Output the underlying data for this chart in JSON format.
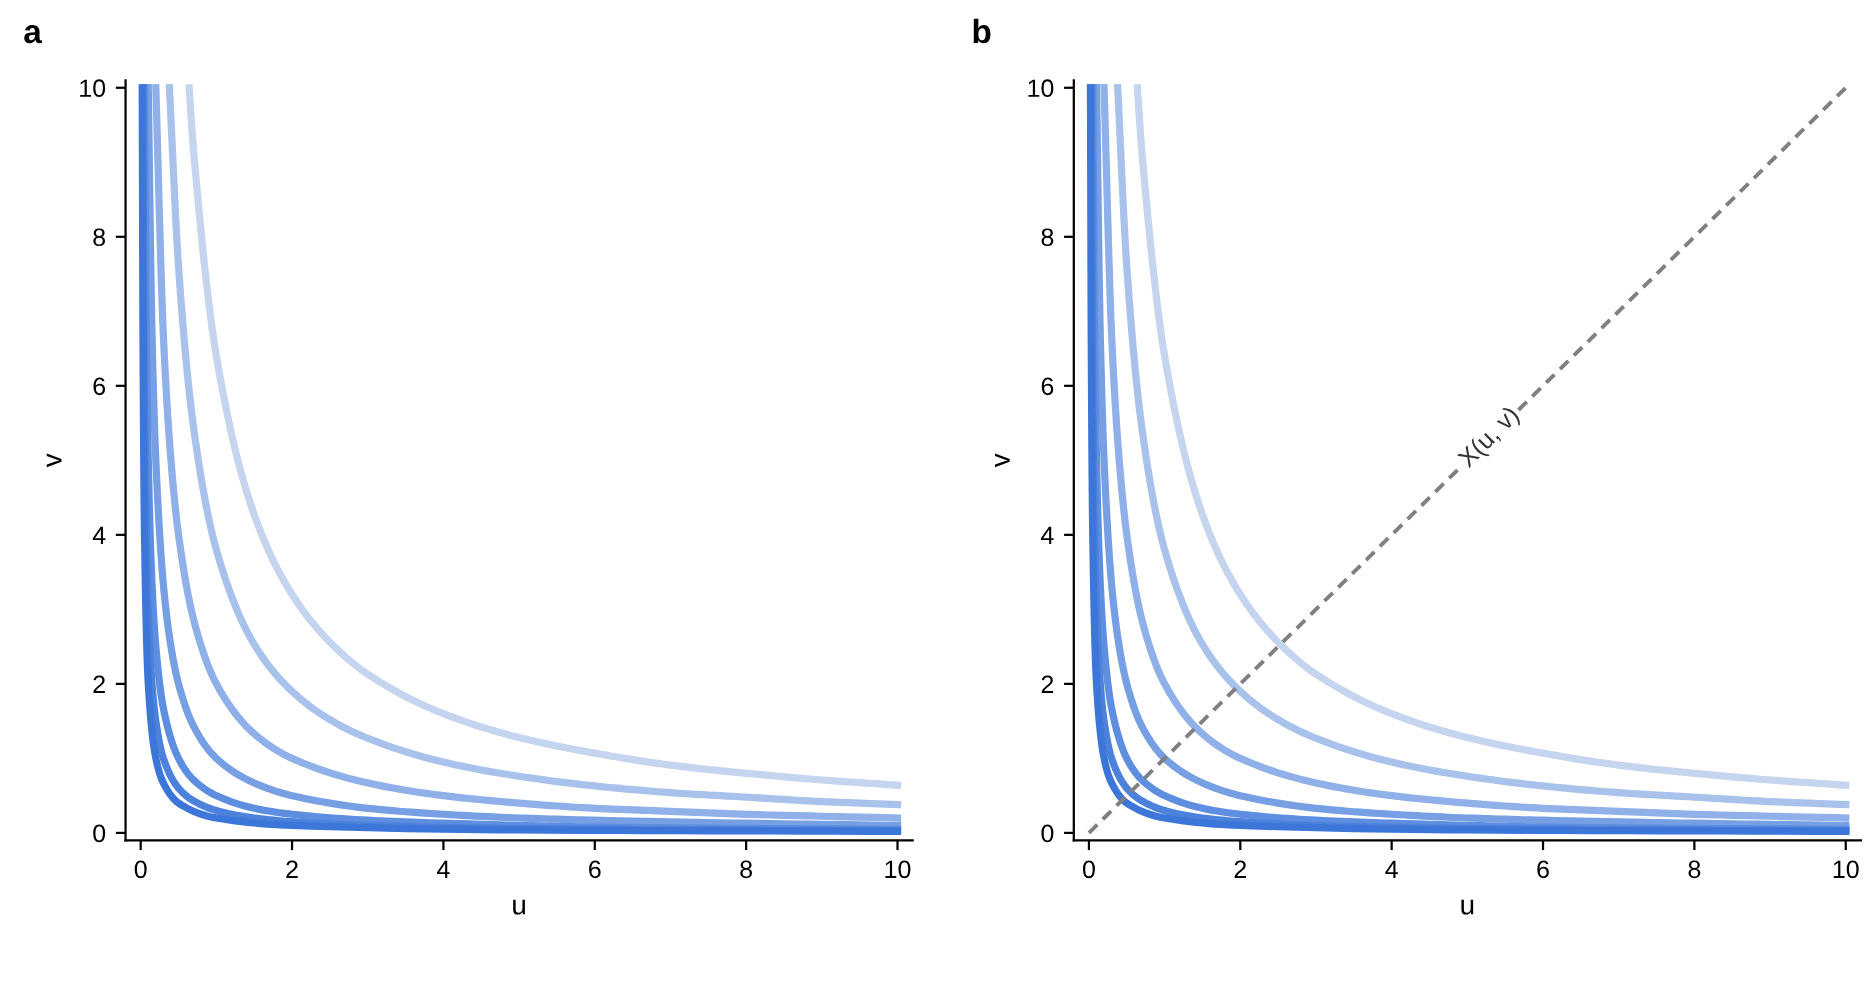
{
  "chart_data": [
    {
      "type": "line",
      "title": "a",
      "xlabel": "u",
      "ylabel": "v",
      "xlim": [
        -0.2,
        10.2
      ],
      "ylim": [
        -0.1,
        10.1
      ],
      "xticks": [
        0,
        2,
        4,
        6,
        8,
        10
      ],
      "yticks": [
        0,
        2,
        4,
        6,
        8,
        10
      ],
      "grid": false,
      "legend": false,
      "line_style": "solid",
      "series": [
        {
          "color": "#c5d5f0",
          "x": [
            0.64,
            0.7,
            1,
            1.5,
            2,
            2.5,
            3,
            4,
            5,
            6,
            7,
            8,
            9,
            10
          ],
          "values": [
            10,
            9.14,
            6.4,
            4.27,
            3.2,
            2.56,
            2.13,
            1.6,
            1.28,
            1.07,
            0.91,
            0.8,
            0.71,
            0.64
          ]
        },
        {
          "color": "#a9c2ec",
          "x": [
            0.38,
            0.5,
            0.7,
            1,
            1.5,
            2,
            2.5,
            3,
            4,
            5,
            6,
            7,
            8,
            9,
            10
          ],
          "values": [
            10,
            7.6,
            5.43,
            3.8,
            2.53,
            1.9,
            1.52,
            1.27,
            0.95,
            0.76,
            0.63,
            0.54,
            0.48,
            0.42,
            0.38
          ]
        },
        {
          "color": "#8fb0e8",
          "x": [
            0.2,
            0.3,
            0.4,
            0.5,
            0.7,
            1,
            1.5,
            2,
            3,
            4,
            5,
            6,
            7,
            8,
            10
          ],
          "values": [
            10,
            6.67,
            5,
            4,
            2.86,
            2,
            1.33,
            1,
            0.67,
            0.5,
            0.4,
            0.33,
            0.29,
            0.25,
            0.2
          ]
        },
        {
          "color": "#769fe4",
          "x": [
            0.1,
            0.15,
            0.2,
            0.3,
            0.4,
            0.5,
            0.7,
            1,
            1.5,
            2,
            3,
            4,
            5,
            6,
            8,
            10
          ],
          "values": [
            10,
            6.67,
            5,
            3.33,
            2.5,
            2,
            1.43,
            1,
            0.67,
            0.5,
            0.33,
            0.25,
            0.2,
            0.17,
            0.13,
            0.1
          ]
        },
        {
          "color": "#5e8ee0",
          "x": [
            0.05,
            0.07,
            0.1,
            0.15,
            0.2,
            0.3,
            0.5,
            0.7,
            1,
            1.5,
            2,
            3,
            4,
            6,
            8,
            10
          ],
          "values": [
            10,
            7.14,
            5,
            3.33,
            2.5,
            1.67,
            1,
            0.71,
            0.5,
            0.33,
            0.25,
            0.17,
            0.13,
            0.08,
            0.06,
            0.05
          ]
        },
        {
          "color": "#4c82dc",
          "x": [
            0.03,
            0.05,
            0.07,
            0.1,
            0.15,
            0.2,
            0.3,
            0.5,
            0.7,
            1,
            1.5,
            2,
            3,
            5,
            10
          ],
          "values": [
            10,
            6,
            4.29,
            3,
            2,
            1.5,
            1,
            0.6,
            0.43,
            0.3,
            0.2,
            0.15,
            0.1,
            0.06,
            0.03
          ]
        },
        {
          "color": "#3b76d8",
          "x": [
            0.02,
            0.03,
            0.05,
            0.1,
            0.2,
            0.3,
            0.5,
            1,
            2,
            5,
            10
          ],
          "values": [
            10,
            6.67,
            4,
            2,
            1,
            0.67,
            0.4,
            0.2,
            0.1,
            0.04,
            0.02
          ]
        }
      ]
    },
    {
      "type": "line",
      "title": "b",
      "xlabel": "u",
      "ylabel": "v",
      "xlim": [
        -0.2,
        10.2
      ],
      "ylim": [
        -0.1,
        10.1
      ],
      "xticks": [
        0,
        2,
        4,
        6,
        8,
        10
      ],
      "yticks": [
        0,
        2,
        4,
        6,
        8,
        10
      ],
      "grid": false,
      "legend": false,
      "annotations": [
        {
          "text": "X(u, v)",
          "x": 5.3,
          "y": 5.3
        }
      ],
      "series": [
        {
          "color": "#c5d5f0",
          "x": [
            0.64,
            0.7,
            1,
            1.5,
            2,
            2.5,
            3,
            4,
            5,
            6,
            7,
            8,
            9,
            10
          ],
          "values": [
            10,
            9.14,
            6.4,
            4.27,
            3.2,
            2.56,
            2.13,
            1.6,
            1.28,
            1.07,
            0.91,
            0.8,
            0.71,
            0.64
          ]
        },
        {
          "color": "#a9c2ec",
          "x": [
            0.38,
            0.5,
            0.7,
            1,
            1.5,
            2,
            2.5,
            3,
            4,
            5,
            6,
            7,
            8,
            9,
            10
          ],
          "values": [
            10,
            7.6,
            5.43,
            3.8,
            2.53,
            1.9,
            1.52,
            1.27,
            0.95,
            0.76,
            0.63,
            0.54,
            0.48,
            0.42,
            0.38
          ]
        },
        {
          "color": "#8fb0e8",
          "x": [
            0.2,
            0.3,
            0.4,
            0.5,
            0.7,
            1,
            1.5,
            2,
            3,
            4,
            5,
            6,
            7,
            8,
            10
          ],
          "values": [
            10,
            6.67,
            5,
            4,
            2.86,
            2,
            1.33,
            1,
            0.67,
            0.5,
            0.4,
            0.33,
            0.29,
            0.25,
            0.2
          ]
        },
        {
          "color": "#769fe4",
          "x": [
            0.1,
            0.15,
            0.2,
            0.3,
            0.4,
            0.5,
            0.7,
            1,
            1.5,
            2,
            3,
            4,
            5,
            6,
            8,
            10
          ],
          "values": [
            10,
            6.67,
            5,
            3.33,
            2.5,
            2,
            1.43,
            1,
            0.67,
            0.5,
            0.33,
            0.25,
            0.2,
            0.17,
            0.13,
            0.1
          ]
        },
        {
          "color": "#5e8ee0",
          "x": [
            0.05,
            0.07,
            0.1,
            0.15,
            0.2,
            0.3,
            0.5,
            0.7,
            1,
            1.5,
            2,
            3,
            4,
            6,
            8,
            10
          ],
          "values": [
            10,
            7.14,
            5,
            3.33,
            2.5,
            1.67,
            1,
            0.71,
            0.5,
            0.33,
            0.25,
            0.17,
            0.13,
            0.08,
            0.06,
            0.05
          ]
        },
        {
          "color": "#4c82dc",
          "x": [
            0.03,
            0.05,
            0.07,
            0.1,
            0.15,
            0.2,
            0.3,
            0.5,
            0.7,
            1,
            1.5,
            2,
            3,
            5,
            10
          ],
          "values": [
            10,
            6,
            4.29,
            3,
            2,
            1.5,
            1,
            0.6,
            0.43,
            0.3,
            0.2,
            0.15,
            0.1,
            0.06,
            0.03
          ]
        },
        {
          "color": "#3b76d8",
          "x": [
            0.02,
            0.03,
            0.05,
            0.1,
            0.2,
            0.3,
            0.5,
            1,
            2,
            5,
            10
          ],
          "values": [
            10,
            6.67,
            4,
            2,
            1,
            0.67,
            0.4,
            0.2,
            0.1,
            0.04,
            0.02
          ]
        },
        {
          "color": "#808080",
          "line_style": "dashed",
          "x": [
            0,
            10
          ],
          "values": [
            0,
            10
          ]
        }
      ]
    }
  ]
}
